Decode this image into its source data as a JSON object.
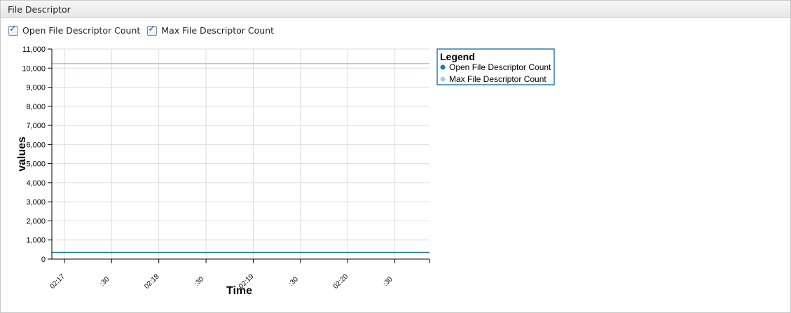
{
  "panel": {
    "title": "File Descriptor"
  },
  "toggles": [
    {
      "label": "Open File Descriptor Count",
      "checked": true
    },
    {
      "label": "Max File Descriptor Count",
      "checked": true
    }
  ],
  "colors": {
    "open": "#1f77b4",
    "max": "#aec7e8",
    "grid": "#dddddd",
    "legend_border": "#2c7bb6"
  },
  "chart_data": {
    "type": "line",
    "xlabel": "Time",
    "ylabel": "values",
    "ylim": [
      0,
      11000
    ],
    "yticks": [
      0,
      1000,
      2000,
      3000,
      4000,
      5000,
      6000,
      7000,
      8000,
      9000,
      10000,
      11000
    ],
    "ytick_labels": [
      "0",
      "1,000",
      "2,000",
      "3,000",
      "4,000",
      "5,000",
      "6,000",
      "7,000",
      "8,000",
      "9,000",
      "10,000",
      "11,000"
    ],
    "xlim": [
      "02:16:52",
      "02:20:52"
    ],
    "xticks": [
      "02:17:00",
      "02:17:30",
      "02:18:00",
      "02:18:30",
      "02:19:00",
      "02:19:30",
      "02:20:00",
      "02:20:30"
    ],
    "xtick_labels": [
      "02:17",
      ":30",
      "02:18",
      ":30",
      "02:19",
      ":30",
      "02:20",
      ":30"
    ],
    "grid": true,
    "legend": {
      "title": "Legend",
      "placement": "top-right"
    },
    "series": [
      {
        "name": "Open File Descriptor Count",
        "x": [
          "02:16:52",
          "02:20:52"
        ],
        "values": [
          350,
          350
        ]
      },
      {
        "name": "Max File Descriptor Count",
        "x": [
          "02:16:52",
          "02:20:52"
        ],
        "values": [
          10240,
          10240
        ]
      }
    ]
  }
}
